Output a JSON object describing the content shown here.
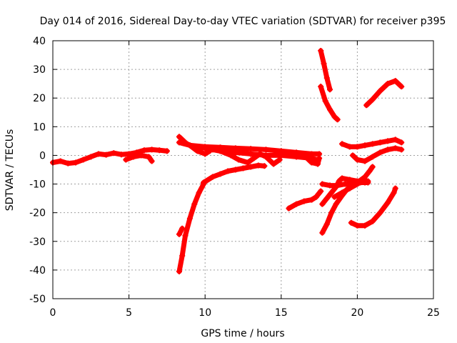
{
  "chart_data": {
    "type": "scatter",
    "title": "Day 014 of 2016, Sidereal Day-to-day VTEC variation (SDTVAR) for receiver p395",
    "xlabel": "GPS time / hours",
    "ylabel": "SDTVAR / TECUs",
    "xlim": [
      0,
      25
    ],
    "ylim": [
      -50,
      40
    ],
    "xticks": [
      0,
      5,
      10,
      15,
      20,
      25
    ],
    "yticks": [
      -50,
      -40,
      -30,
      -20,
      -10,
      0,
      10,
      20,
      30,
      40
    ],
    "grid": true,
    "marker_color": "#ff0000",
    "series": [
      {
        "points": [
          [
            0.0,
            -2.5
          ],
          [
            0.5,
            -2.0
          ],
          [
            1.0,
            -2.8
          ],
          [
            1.5,
            -2.5
          ],
          [
            2.0,
            -1.5
          ],
          [
            2.5,
            -0.5
          ],
          [
            3.0,
            0.5
          ],
          [
            3.5,
            0.2
          ],
          [
            4.0,
            0.8
          ],
          [
            4.5,
            0.3
          ],
          [
            5.0,
            0.5
          ],
          [
            5.5,
            1.0
          ],
          [
            6.0,
            1.8
          ],
          [
            6.5,
            2.0
          ],
          [
            7.0,
            1.8
          ],
          [
            7.5,
            1.5
          ]
        ]
      },
      {
        "points": [
          [
            4.8,
            -1.5
          ],
          [
            5.3,
            -0.5
          ],
          [
            5.8,
            0.0
          ],
          [
            6.3,
            -0.5
          ],
          [
            6.5,
            -2.0
          ]
        ]
      },
      {
        "points": [
          [
            8.3,
            6.5
          ],
          [
            8.8,
            4.0
          ],
          [
            9.3,
            3.0
          ],
          [
            10.0,
            2.5
          ],
          [
            10.5,
            2.0
          ],
          [
            11.0,
            1.5
          ],
          [
            12.0,
            1.0
          ],
          [
            13.0,
            0.5
          ],
          [
            14.0,
            0.0
          ],
          [
            15.0,
            0.0
          ],
          [
            16.0,
            -0.5
          ],
          [
            17.0,
            -1.0
          ],
          [
            17.4,
            -1.5
          ]
        ]
      },
      {
        "points": [
          [
            8.3,
            4.5
          ],
          [
            9.0,
            3.5
          ],
          [
            10.0,
            3.0
          ],
          [
            11.0,
            2.8
          ],
          [
            12.0,
            2.5
          ],
          [
            13.0,
            2.3
          ],
          [
            14.0,
            2.0
          ],
          [
            15.0,
            1.5
          ],
          [
            16.0,
            1.0
          ],
          [
            17.0,
            0.5
          ],
          [
            17.5,
            0.5
          ]
        ]
      },
      {
        "points": [
          [
            8.5,
            5.0
          ],
          [
            9.0,
            3.5
          ],
          [
            9.5,
            1.5
          ],
          [
            10.0,
            0.5
          ],
          [
            10.3,
            1.5
          ]
        ]
      },
      {
        "points": [
          [
            11.0,
            1.5
          ],
          [
            11.7,
            0.0
          ],
          [
            12.2,
            -1.5
          ],
          [
            12.8,
            -2.5
          ],
          [
            13.2,
            -1.0
          ],
          [
            13.6,
            0.5
          ],
          [
            14.0,
            -0.5
          ],
          [
            14.5,
            -3.0
          ],
          [
            14.9,
            -1.5
          ]
        ]
      },
      {
        "points": [
          [
            16.6,
            -0.5
          ],
          [
            17.0,
            -2.5
          ],
          [
            17.4,
            -3.0
          ],
          [
            17.5,
            -1.0
          ]
        ]
      },
      {
        "points": [
          [
            8.3,
            -40.5
          ],
          [
            8.5,
            -35.0
          ],
          [
            8.7,
            -28.0
          ],
          [
            9.0,
            -22.0
          ],
          [
            9.3,
            -17.0
          ],
          [
            9.6,
            -13.0
          ],
          [
            9.9,
            -10.0
          ]
        ]
      },
      {
        "points": [
          [
            8.3,
            -27.5
          ],
          [
            8.5,
            -25.5
          ]
        ]
      },
      {
        "points": [
          [
            9.9,
            -9.5
          ],
          [
            10.5,
            -7.5
          ],
          [
            11.0,
            -6.5
          ],
          [
            11.5,
            -5.5
          ],
          [
            12.0,
            -5.0
          ],
          [
            12.5,
            -4.5
          ],
          [
            13.0,
            -4.0
          ],
          [
            13.5,
            -3.5
          ],
          [
            13.9,
            -3.7
          ]
        ]
      },
      {
        "points": [
          [
            17.6,
            36.5
          ],
          [
            17.8,
            32.0
          ],
          [
            18.0,
            27.0
          ],
          [
            18.2,
            23.0
          ]
        ]
      },
      {
        "points": [
          [
            17.6,
            24.0
          ],
          [
            17.9,
            19.0
          ],
          [
            18.2,
            16.0
          ],
          [
            18.5,
            13.5
          ],
          [
            18.7,
            12.5
          ]
        ]
      },
      {
        "points": [
          [
            19.0,
            4.0
          ],
          [
            19.5,
            3.0
          ],
          [
            20.0,
            3.0
          ],
          [
            20.5,
            3.5
          ],
          [
            21.0,
            4.0
          ],
          [
            21.5,
            4.5
          ],
          [
            22.0,
            5.0
          ],
          [
            22.5,
            5.5
          ],
          [
            22.9,
            4.5
          ]
        ]
      },
      {
        "points": [
          [
            19.7,
            0.0
          ],
          [
            20.0,
            -1.5
          ],
          [
            20.5,
            -2.0
          ],
          [
            21.0,
            -0.5
          ],
          [
            21.5,
            1.0
          ],
          [
            22.0,
            2.0
          ],
          [
            22.5,
            2.5
          ],
          [
            22.9,
            2.0
          ]
        ]
      },
      {
        "points": [
          [
            20.6,
            17.5
          ],
          [
            21.0,
            19.5
          ],
          [
            21.5,
            22.5
          ],
          [
            22.0,
            25.0
          ],
          [
            22.5,
            26.0
          ],
          [
            22.9,
            24.0
          ]
        ]
      },
      {
        "points": [
          [
            15.5,
            -18.5
          ],
          [
            16.0,
            -17.0
          ],
          [
            16.5,
            -16.0
          ],
          [
            17.0,
            -15.5
          ],
          [
            17.3,
            -14.5
          ],
          [
            17.6,
            -12.5
          ]
        ]
      },
      {
        "points": [
          [
            17.7,
            -17.0
          ],
          [
            18.0,
            -15.0
          ],
          [
            18.3,
            -13.0
          ],
          [
            18.6,
            -11.0
          ],
          [
            18.8,
            -9.0
          ],
          [
            19.0,
            -8.0
          ],
          [
            19.5,
            -8.5
          ],
          [
            20.0,
            -9.0
          ],
          [
            20.5,
            -9.5
          ],
          [
            20.7,
            -9.0
          ]
        ]
      },
      {
        "points": [
          [
            17.7,
            -10.0
          ],
          [
            18.2,
            -10.5
          ],
          [
            18.7,
            -10.5
          ],
          [
            19.2,
            -10.0
          ],
          [
            19.7,
            -10.0
          ],
          [
            20.2,
            -9.5
          ],
          [
            20.7,
            -9.5
          ]
        ]
      },
      {
        "points": [
          [
            17.7,
            -27.0
          ],
          [
            18.0,
            -24.0
          ],
          [
            18.3,
            -20.0
          ],
          [
            18.6,
            -17.0
          ],
          [
            19.0,
            -14.0
          ],
          [
            19.3,
            -12.0
          ],
          [
            19.6,
            -10.5
          ],
          [
            20.0,
            -9.5
          ],
          [
            20.5,
            -7.5
          ],
          [
            20.8,
            -5.5
          ],
          [
            21.0,
            -4.0
          ]
        ]
      },
      {
        "points": [
          [
            18.5,
            -14.5
          ],
          [
            19.0,
            -13.0
          ],
          [
            19.5,
            -11.5
          ],
          [
            20.0,
            -10.0
          ],
          [
            20.5,
            -8.5
          ]
        ]
      },
      {
        "points": [
          [
            19.6,
            -23.5
          ],
          [
            20.0,
            -24.5
          ],
          [
            20.5,
            -24.5
          ],
          [
            21.0,
            -23.0
          ],
          [
            21.5,
            -20.0
          ],
          [
            22.0,
            -16.5
          ],
          [
            22.4,
            -13.0
          ],
          [
            22.5,
            -11.5
          ]
        ]
      }
    ]
  }
}
